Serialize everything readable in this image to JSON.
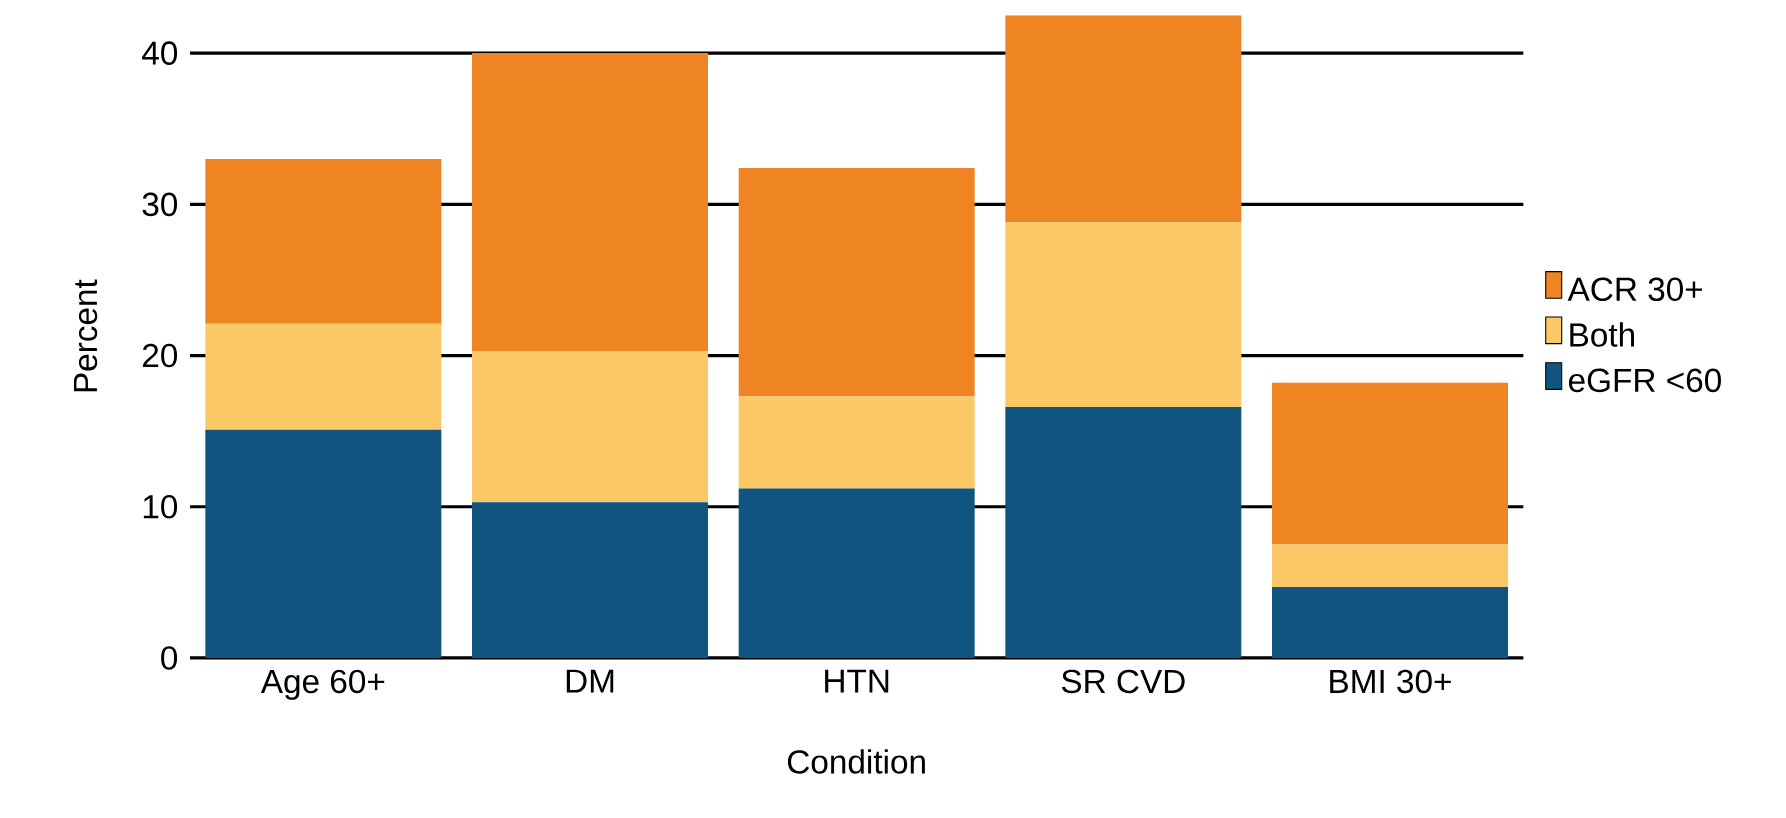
{
  "chart_data": {
    "type": "bar",
    "stacked": true,
    "xlabel": "Condition",
    "ylabel": "Percent",
    "categories": [
      "Age 60+",
      "DM",
      "HTN",
      "SR CVD",
      "BMI 30+"
    ],
    "series": [
      {
        "name": "eGFR <60",
        "color": "#0f5580",
        "values": [
          15.1,
          10.3,
          11.2,
          16.6,
          4.7
        ]
      },
      {
        "name": "Both",
        "color": "#fcc865",
        "values": [
          7.0,
          10.0,
          6.1,
          12.2,
          2.8
        ]
      },
      {
        "name": "ACR 30+",
        "color": "#ee8522",
        "values": [
          10.9,
          19.7,
          15.1,
          13.7,
          10.7
        ]
      }
    ],
    "ylim": [
      0,
      42.5
    ],
    "yticks": [
      0,
      10,
      20,
      30,
      40
    ],
    "grid": "y",
    "legend": "right"
  }
}
